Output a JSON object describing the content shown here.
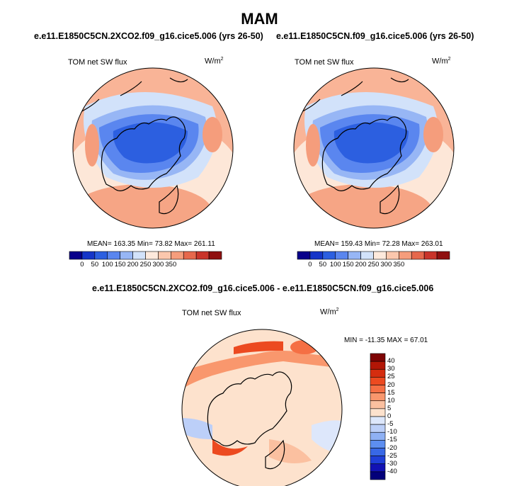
{
  "page": {
    "season_title": "MAM",
    "diff_title": "e.e11.E1850C5CN.2XCO2.f09_g16.cice5.006 - e.e11.E1850C5CN.f09_g16.cice5.006"
  },
  "colors": {
    "abs_scale": [
      "#08008a",
      "#1535c8",
      "#2c5fe0",
      "#5a86ef",
      "#97b6f5",
      "#d2e2fa",
      "#fde9dc",
      "#fbc7ad",
      "#f59d7c",
      "#e6684c",
      "#c9342a",
      "#8f1010"
    ],
    "diff_scale": [
      "#03007a",
      "#1212b4",
      "#1f3fd8",
      "#3868e6",
      "#5d8ef0",
      "#8fb1f4",
      "#bccff8",
      "#dde7fb",
      "#fde2cd",
      "#fbc0a0",
      "#f9976d",
      "#f56f44",
      "#ec4a20",
      "#d52d0f",
      "#b21606",
      "#7e0404"
    ],
    "coast": "#000000"
  },
  "chart_data": [
    {
      "type": "heatmap",
      "title": "e.e11.E1850C5CN.2XCO2.f09_g16.cice5.006 (yrs 26-50)",
      "variable": "TOM net SW flux",
      "units": "W/m2",
      "projection": "polar-stereographic (north)",
      "stats": {
        "mean": 163.35,
        "min": 73.82,
        "max": 261.11
      },
      "stats_text": "MEAN= 163.35  Min=  73.82  Max= 261.11",
      "colorbar_ticks": [
        "0",
        "50",
        "100",
        "150",
        "200",
        "250",
        "300",
        "350"
      ]
    },
    {
      "type": "heatmap",
      "title": "e.e11.E1850C5CN.f09_g16.cice5.006 (yrs 26-50)",
      "variable": "TOM net SW flux",
      "units": "W/m2",
      "projection": "polar-stereographic (north)",
      "stats": {
        "mean": 159.43,
        "min": 72.28,
        "max": 263.01
      },
      "stats_text": "MEAN= 159.43  Min=  72.28  Max= 263.01",
      "colorbar_ticks": [
        "0",
        "50",
        "100",
        "150",
        "200",
        "250",
        "300",
        "350"
      ]
    },
    {
      "type": "heatmap",
      "title": "e.e11.E1850C5CN.2XCO2.f09_g16.cice5.006 - e.e11.E1850C5CN.f09_g16.cice5.006",
      "variable": "TOM net SW flux",
      "units": "W/m2",
      "projection": "polar-stereographic (north)",
      "stats": {
        "min": -11.35,
        "max": 67.01
      },
      "stats_text": "MIN = -11.35 MAX =  67.01",
      "colorbar_ticks": [
        "40",
        "30",
        "25",
        "20",
        "15",
        "10",
        "5",
        "0",
        "-5",
        "-10",
        "-15",
        "-20",
        "-25",
        "-30",
        "-40"
      ]
    }
  ]
}
